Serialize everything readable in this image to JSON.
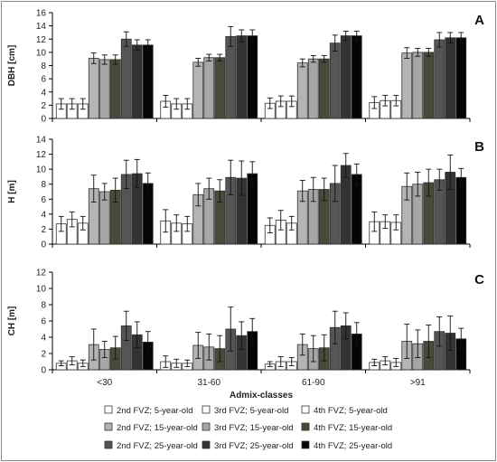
{
  "chart_data": {
    "type": "bar",
    "xlabel": "Admix-classes",
    "categories": [
      "<30",
      "31-60",
      "61-90",
      ">91"
    ],
    "series": [
      {
        "name": "2nd FVZ; 5-year-old",
        "color": "#ffffff"
      },
      {
        "name": "3rd FVZ; 5-year-old",
        "color": "#ffffff"
      },
      {
        "name": "4th FVZ; 5-year-old",
        "color": "#ffffff"
      },
      {
        "name": "2nd FVZ; 15-year-old",
        "color": "#b4b4b4"
      },
      {
        "name": "3rd FVZ; 15-year-old",
        "color": "#a6a6a6"
      },
      {
        "name": "4th FVZ; 15-year-old",
        "color": "#4a4a3a"
      },
      {
        "name": "2nd FVZ; 25-year-old",
        "color": "#555555"
      },
      {
        "name": "3rd FVZ; 25-year-old",
        "color": "#333333"
      },
      {
        "name": "4th FVZ; 25-year-old",
        "color": "#050505"
      }
    ],
    "panels": [
      {
        "letter": "A",
        "ylabel": "DBH [cm]",
        "ylim": [
          0,
          16
        ],
        "yticks": [
          0,
          2,
          4,
          6,
          8,
          10,
          12,
          14,
          16
        ],
        "values": [
          [
            2.2,
            2.2,
            2.2,
            9.1,
            8.9,
            8.9,
            12.0,
            11.1,
            11.1
          ],
          [
            2.6,
            2.2,
            2.2,
            8.5,
            9.2,
            9.2,
            12.4,
            12.5,
            12.5
          ],
          [
            2.3,
            2.6,
            2.6,
            8.4,
            9.0,
            9.0,
            11.4,
            12.5,
            12.5
          ],
          [
            2.4,
            2.7,
            2.7,
            9.9,
            10.0,
            10.0,
            11.9,
            12.2,
            12.2
          ]
        ],
        "errors": [
          [
            0.8,
            0.8,
            0.8,
            0.8,
            0.7,
            0.7,
            1.1,
            0.8,
            0.8
          ],
          [
            0.9,
            0.8,
            0.8,
            0.6,
            0.5,
            0.5,
            1.5,
            0.9,
            0.9
          ],
          [
            0.8,
            0.8,
            0.8,
            0.6,
            0.5,
            0.5,
            1.2,
            0.7,
            0.7
          ],
          [
            0.9,
            0.8,
            0.8,
            0.8,
            0.6,
            0.6,
            1.1,
            0.8,
            0.8
          ]
        ]
      },
      {
        "letter": "B",
        "ylabel": "H [m]",
        "ylim": [
          0,
          14
        ],
        "yticks": [
          0,
          2,
          4,
          6,
          8,
          10,
          12,
          14
        ],
        "values": [
          [
            2.7,
            3.3,
            2.8,
            7.4,
            7.0,
            7.2,
            9.3,
            9.4,
            8.1
          ],
          [
            3.1,
            2.8,
            2.7,
            6.6,
            7.4,
            7.1,
            8.9,
            8.8,
            9.4
          ],
          [
            2.5,
            3.2,
            2.8,
            7.1,
            7.3,
            7.3,
            8.1,
            10.5,
            9.3
          ],
          [
            3.0,
            3.0,
            2.9,
            7.7,
            8.0,
            8.2,
            8.6,
            9.6,
            8.9
          ]
        ],
        "errors": [
          [
            1.0,
            1.0,
            0.9,
            1.8,
            1.1,
            1.6,
            1.9,
            1.9,
            1.4
          ],
          [
            1.5,
            1.1,
            1.0,
            1.5,
            1.4,
            1.5,
            2.3,
            2.3,
            1.6
          ],
          [
            1.0,
            1.3,
            0.9,
            1.4,
            1.6,
            1.5,
            2.4,
            1.6,
            1.4
          ],
          [
            1.3,
            0.9,
            1.0,
            1.8,
            1.6,
            1.8,
            1.4,
            2.3,
            1.2
          ]
        ]
      },
      {
        "letter": "C",
        "ylabel": "CH [m]",
        "ylim": [
          0,
          12
        ],
        "yticks": [
          0,
          2,
          4,
          6,
          8,
          10,
          12
        ],
        "values": [
          [
            0.8,
            1.1,
            0.8,
            3.1,
            2.5,
            2.7,
            5.4,
            4.3,
            3.4
          ],
          [
            1.0,
            0.8,
            0.8,
            3.0,
            2.8,
            2.6,
            5.0,
            4.2,
            4.7
          ],
          [
            0.7,
            1.0,
            1.0,
            3.1,
            2.6,
            2.7,
            5.2,
            5.4,
            4.4
          ],
          [
            0.9,
            1.1,
            0.9,
            3.5,
            3.2,
            3.5,
            4.7,
            4.5,
            3.8
          ]
        ],
        "errors": [
          [
            0.3,
            0.5,
            0.4,
            1.9,
            1.0,
            1.4,
            1.8,
            1.6,
            1.3
          ],
          [
            0.7,
            0.5,
            0.4,
            1.6,
            1.6,
            1.6,
            2.7,
            1.7,
            1.6
          ],
          [
            0.3,
            0.6,
            0.5,
            1.3,
            1.6,
            1.6,
            2.0,
            1.6,
            1.4
          ],
          [
            0.4,
            0.5,
            0.5,
            2.1,
            1.7,
            2.0,
            1.8,
            2.1,
            1.3
          ]
        ]
      }
    ],
    "legend": {
      "placement": "bottom",
      "columns": 3
    }
  }
}
